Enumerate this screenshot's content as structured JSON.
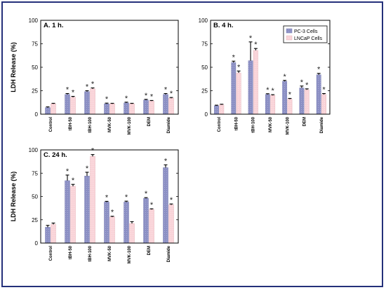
{
  "figure": {
    "ylabel": "LDH Release (%)"
  },
  "colors": {
    "pc3": "#8c90c4",
    "lncap": "#f9d3d8",
    "frame": "#24307a"
  },
  "chart_data": [
    {
      "type": "bar",
      "title": "A. 1 h.",
      "categories": [
        "Control",
        "tBH-50",
        "tBH-100",
        "MVK-50",
        "MVK-100",
        "DEM",
        "Diamide"
      ],
      "ylabel": "LDH Release (%)",
      "ylim": [
        0,
        100
      ],
      "yticks": [
        "0",
        "25",
        "50",
        "75",
        "100"
      ],
      "series": [
        {
          "name": "PC-3 Cells",
          "values": [
            7,
            21,
            24,
            11,
            12,
            15,
            21
          ],
          "errors": [
            0.8,
            1,
            1,
            0.8,
            0.8,
            0.8,
            1
          ]
        },
        {
          "name": "LNCaP Cells",
          "values": [
            11,
            18,
            27,
            11,
            11,
            14,
            17
          ],
          "errors": [
            0.6,
            1,
            1,
            0.6,
            0.6,
            0.6,
            0.8
          ]
        }
      ],
      "significance": [
        [
          false,
          true,
          true,
          true,
          true,
          true,
          true
        ],
        [
          false,
          true,
          true,
          false,
          false,
          true,
          true
        ]
      ],
      "legend": "none"
    },
    {
      "type": "bar",
      "title": "B. 4 h.",
      "categories": [
        "Control",
        "tBH-50",
        "tBH-100",
        "MVK-50",
        "MVK-100",
        "DEM",
        "Diamide"
      ],
      "ylim": [
        0,
        100
      ],
      "yticks": [
        "0",
        "25",
        "50",
        "75",
        "100"
      ],
      "series": [
        {
          "name": "PC-3 Cells",
          "values": [
            9,
            55,
            57,
            21,
            35,
            28,
            42
          ],
          "errors": [
            0.6,
            1.5,
            20,
            0.8,
            1,
            2,
            1.5
          ]
        },
        {
          "name": "LNCaP Cells",
          "values": [
            10,
            44,
            68,
            20,
            16,
            26,
            21
          ],
          "errors": [
            0.6,
            2,
            2,
            0.8,
            0.8,
            1,
            1
          ]
        }
      ],
      "significance": [
        [
          false,
          true,
          true,
          true,
          true,
          true,
          true
        ],
        [
          false,
          true,
          true,
          true,
          true,
          true,
          true
        ]
      ],
      "legend": "top-right"
    },
    {
      "type": "bar",
      "title": "C. 24 h.",
      "categories": [
        "Control",
        "tBH-50",
        "tBH-100",
        "MVK-50",
        "MVK-100",
        "DEM",
        "Diamide"
      ],
      "ylabel": "LDH Release (%)",
      "ylim": [
        0,
        100
      ],
      "yticks": [
        "0",
        "25",
        "50",
        "75",
        "100"
      ],
      "series": [
        {
          "name": "PC-3 Cells",
          "values": [
            17,
            67,
            72,
            44,
            44,
            48,
            81
          ],
          "errors": [
            2,
            6,
            4,
            0.8,
            1,
            0.8,
            3
          ]
        },
        {
          "name": "LNCaP Cells",
          "values": [
            20,
            61,
            93,
            28,
            21,
            36,
            41
          ],
          "errors": [
            1.5,
            2,
            2,
            0.8,
            2,
            0.8,
            1
          ]
        }
      ],
      "significance": [
        [
          false,
          true,
          true,
          true,
          true,
          true,
          true
        ],
        [
          false,
          true,
          true,
          true,
          false,
          true,
          true
        ]
      ],
      "legend": "none"
    }
  ]
}
